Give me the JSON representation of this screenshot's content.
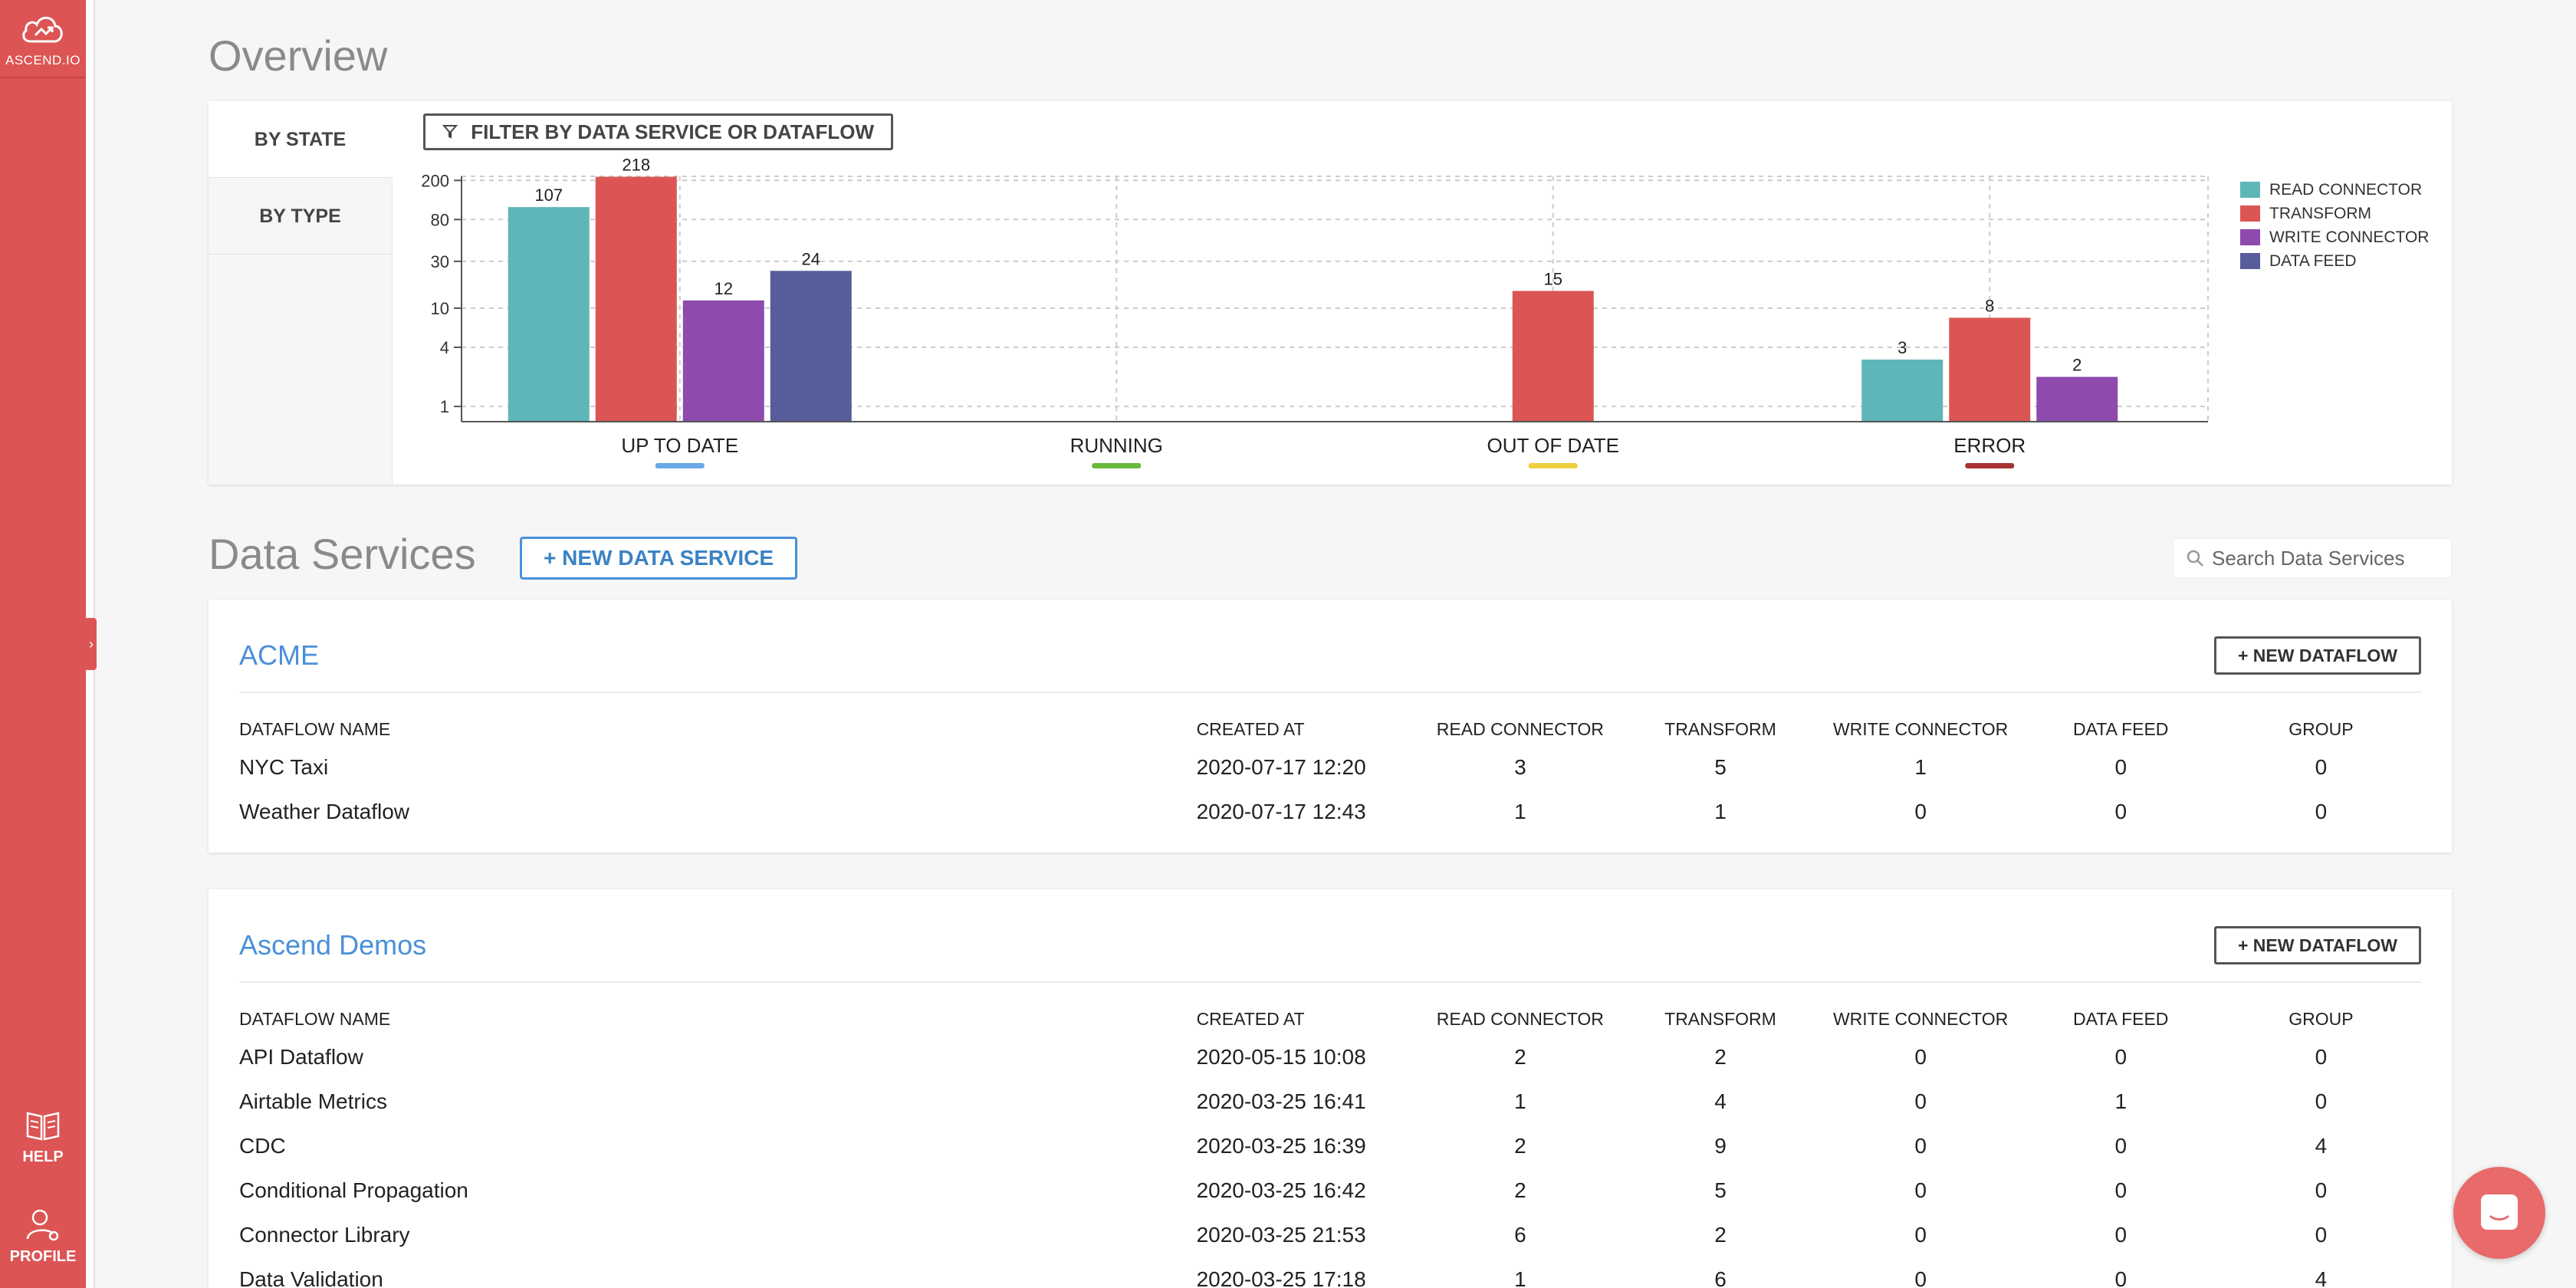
{
  "brand": {
    "label": "ASCEND.IO"
  },
  "sidebar": {
    "help_label": "HELP",
    "profile_label": "PROFILE",
    "collapse_glyph": "›"
  },
  "overview": {
    "title": "Overview",
    "tabs": [
      "BY STATE",
      "BY TYPE"
    ],
    "filter_label": "FILTER BY DATA SERVICE OR DATAFLOW"
  },
  "chart_data": {
    "type": "bar",
    "categories": [
      "UP TO DATE",
      "RUNNING",
      "OUT OF DATE",
      "ERROR"
    ],
    "category_colors": [
      "#6aa8e8",
      "#6ab83c",
      "#f0d040",
      "#a83232"
    ],
    "series": [
      {
        "name": "READ CONNECTOR",
        "color": "#5eb6b8",
        "values": [
          107,
          0,
          0,
          3
        ]
      },
      {
        "name": "TRANSFORM",
        "color": "#dc5555",
        "values": [
          218,
          0,
          15,
          8
        ]
      },
      {
        "name": "WRITE CONNECTOR",
        "color": "#8e4aad",
        "values": [
          12,
          0,
          0,
          2
        ]
      },
      {
        "name": "DATA FEED",
        "color": "#575d9a",
        "values": [
          24,
          0,
          0,
          0
        ]
      }
    ],
    "y_scale": "log",
    "y_ticks": [
      1,
      4,
      10,
      30,
      80,
      200
    ],
    "ylim": [
      0.7,
      220
    ],
    "grid": true,
    "legend_position": "right"
  },
  "data_services": {
    "title": "Data Services",
    "new_button": "+ NEW DATA SERVICE",
    "search_placeholder": "Search Data Services",
    "columns": [
      "DATAFLOW NAME",
      "CREATED AT",
      "READ CONNECTOR",
      "TRANSFORM",
      "WRITE CONNECTOR",
      "DATA FEED",
      "GROUP"
    ],
    "new_dataflow_label": "+ NEW DATAFLOW",
    "services": [
      {
        "name": "ACME",
        "rows": [
          {
            "name": "NYC Taxi",
            "created": "2020-07-17 12:20",
            "read": "3",
            "transform": "5",
            "write": "1",
            "feed": "0",
            "group": "0"
          },
          {
            "name": "Weather Dataflow",
            "created": "2020-07-17 12:43",
            "read": "1",
            "transform": "1",
            "write": "0",
            "feed": "0",
            "group": "0"
          }
        ]
      },
      {
        "name": "Ascend Demos",
        "rows": [
          {
            "name": "API Dataflow",
            "created": "2020-05-15 10:08",
            "read": "2",
            "transform": "2",
            "write": "0",
            "feed": "0",
            "group": "0"
          },
          {
            "name": "Airtable Metrics",
            "created": "2020-03-25 16:41",
            "read": "1",
            "transform": "4",
            "write": "0",
            "feed": "1",
            "group": "0"
          },
          {
            "name": "CDC",
            "created": "2020-03-25 16:39",
            "read": "2",
            "transform": "9",
            "write": "0",
            "feed": "0",
            "group": "4"
          },
          {
            "name": "Conditional Propagation",
            "created": "2020-03-25 16:42",
            "read": "2",
            "transform": "5",
            "write": "0",
            "feed": "0",
            "group": "0"
          },
          {
            "name": "Connector Library",
            "created": "2020-03-25 21:53",
            "read": "6",
            "transform": "2",
            "write": "0",
            "feed": "0",
            "group": "0"
          },
          {
            "name": "Data Validation",
            "created": "2020-03-25 17:18",
            "read": "1",
            "transform": "6",
            "write": "0",
            "feed": "0",
            "group": "4"
          }
        ]
      }
    ]
  }
}
